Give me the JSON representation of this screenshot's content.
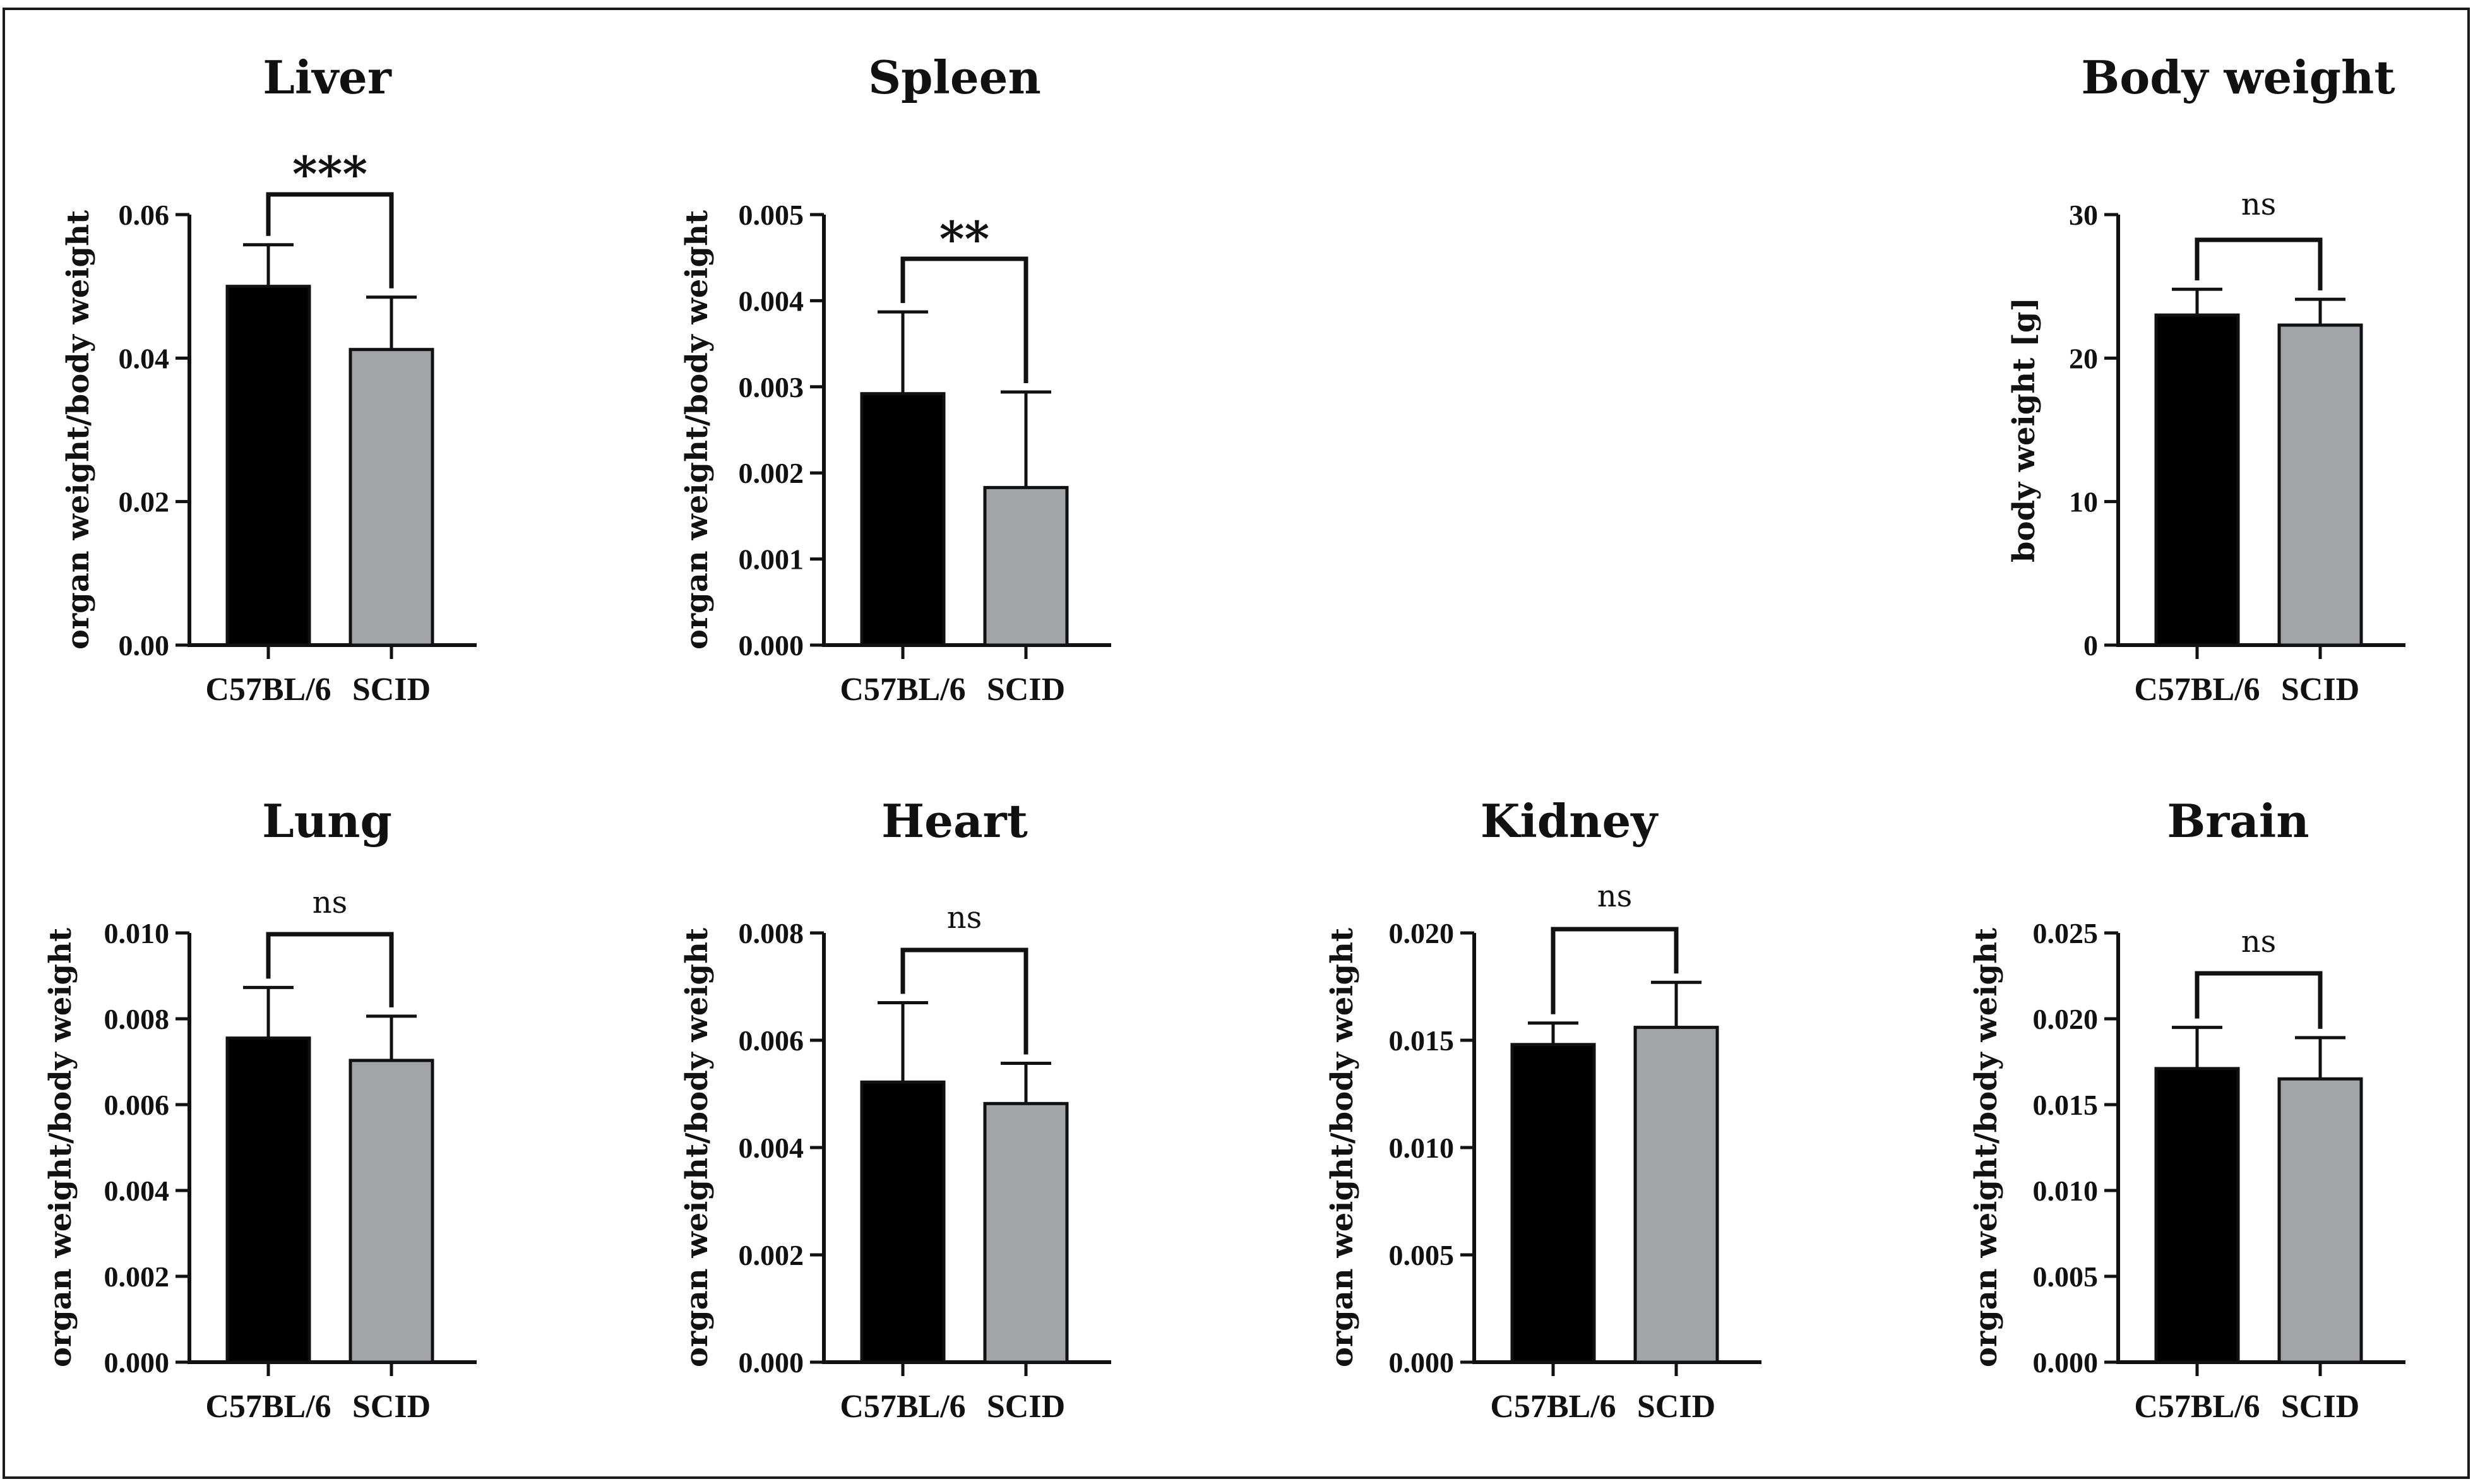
{
  "chart_data": [
    {
      "type": "bar",
      "title": "Liver",
      "ylabel": "organ weight/body weight",
      "categories": [
        "C57BL/6",
        "SCID"
      ],
      "values": [
        0.05,
        0.0412
      ],
      "errors": [
        0.0058,
        0.0073
      ],
      "colors": [
        "#000000",
        "#a3a4a8"
      ],
      "ylim": [
        0,
        0.06
      ],
      "yticks": [
        0.0,
        0.02,
        0.04,
        0.06
      ],
      "ytick_labels": [
        "0.00",
        "0.02",
        "0.04",
        "0.06"
      ],
      "significance": "***"
    },
    {
      "type": "bar",
      "title": "Spleen",
      "ylabel": "organ weight/body weight",
      "categories": [
        "C57BL/6",
        "SCID"
      ],
      "values": [
        0.00292,
        0.00183
      ],
      "errors": [
        0.00095,
        0.00111
      ],
      "colors": [
        "#000000",
        "#a3a4a8"
      ],
      "ylim": [
        0,
        0.005
      ],
      "yticks": [
        0.0,
        0.001,
        0.002,
        0.003,
        0.004,
        0.005
      ],
      "ytick_labels": [
        "0.000",
        "0.001",
        "0.002",
        "0.003",
        "0.004",
        "0.005"
      ],
      "significance": "**"
    },
    {
      "type": "bar",
      "title": "Body weight",
      "ylabel": "body weight [g]",
      "categories": [
        "C57BL/6",
        "SCID"
      ],
      "values": [
        23.0,
        22.3
      ],
      "errors": [
        1.8,
        1.8
      ],
      "colors": [
        "#000000",
        "#a3a4a8"
      ],
      "ylim": [
        0,
        30
      ],
      "yticks": [
        0,
        10,
        20,
        30
      ],
      "ytick_labels": [
        "0",
        "10",
        "20",
        "30"
      ],
      "significance": "ns"
    },
    {
      "type": "bar",
      "title": "Lung",
      "ylabel": "organ weight/body weight",
      "categories": [
        "C57BL/6",
        "SCID"
      ],
      "values": [
        0.00755,
        0.00703
      ],
      "errors": [
        0.00118,
        0.00103
      ],
      "colors": [
        "#000000",
        "#a3a4a8"
      ],
      "ylim": [
        0,
        0.01
      ],
      "yticks": [
        0.0,
        0.002,
        0.004,
        0.006,
        0.008,
        0.01
      ],
      "ytick_labels": [
        "0.000",
        "0.002",
        "0.004",
        "0.006",
        "0.008",
        "0.010"
      ],
      "significance": "ns"
    },
    {
      "type": "bar",
      "title": "Heart",
      "ylabel": "organ weight/body weight",
      "categories": [
        "C57BL/6",
        "SCID"
      ],
      "values": [
        0.00522,
        0.00482
      ],
      "errors": [
        0.00148,
        0.00075
      ],
      "colors": [
        "#000000",
        "#a3a4a8"
      ],
      "ylim": [
        0,
        0.008
      ],
      "yticks": [
        0.0,
        0.002,
        0.004,
        0.006,
        0.008
      ],
      "ytick_labels": [
        "0.000",
        "0.002",
        "0.004",
        "0.006",
        "0.008"
      ],
      "significance": "ns"
    },
    {
      "type": "bar",
      "title": "Kidney",
      "ylabel": "organ weight/body weight",
      "categories": [
        "C57BL/6",
        "SCID"
      ],
      "values": [
        0.0148,
        0.0156
      ],
      "errors": [
        0.001,
        0.0021
      ],
      "colors": [
        "#000000",
        "#a3a4a8"
      ],
      "ylim": [
        0,
        0.02
      ],
      "yticks": [
        0.0,
        0.005,
        0.01,
        0.015,
        0.02
      ],
      "ytick_labels": [
        "0.000",
        "0.005",
        "0.010",
        "0.015",
        "0.020"
      ],
      "significance": "ns"
    },
    {
      "type": "bar",
      "title": "Brain",
      "ylabel": "organ weight/body weight",
      "categories": [
        "C57BL/6",
        "SCID"
      ],
      "values": [
        0.0171,
        0.0165
      ],
      "errors": [
        0.0024,
        0.0024
      ],
      "colors": [
        "#000000",
        "#a3a4a8"
      ],
      "ylim": [
        0,
        0.025
      ],
      "yticks": [
        0.0,
        0.005,
        0.01,
        0.015,
        0.02,
        0.025
      ],
      "ytick_labels": [
        "0.000",
        "0.005",
        "0.010",
        "0.015",
        "0.020",
        "0.025"
      ],
      "significance": "ns"
    }
  ]
}
